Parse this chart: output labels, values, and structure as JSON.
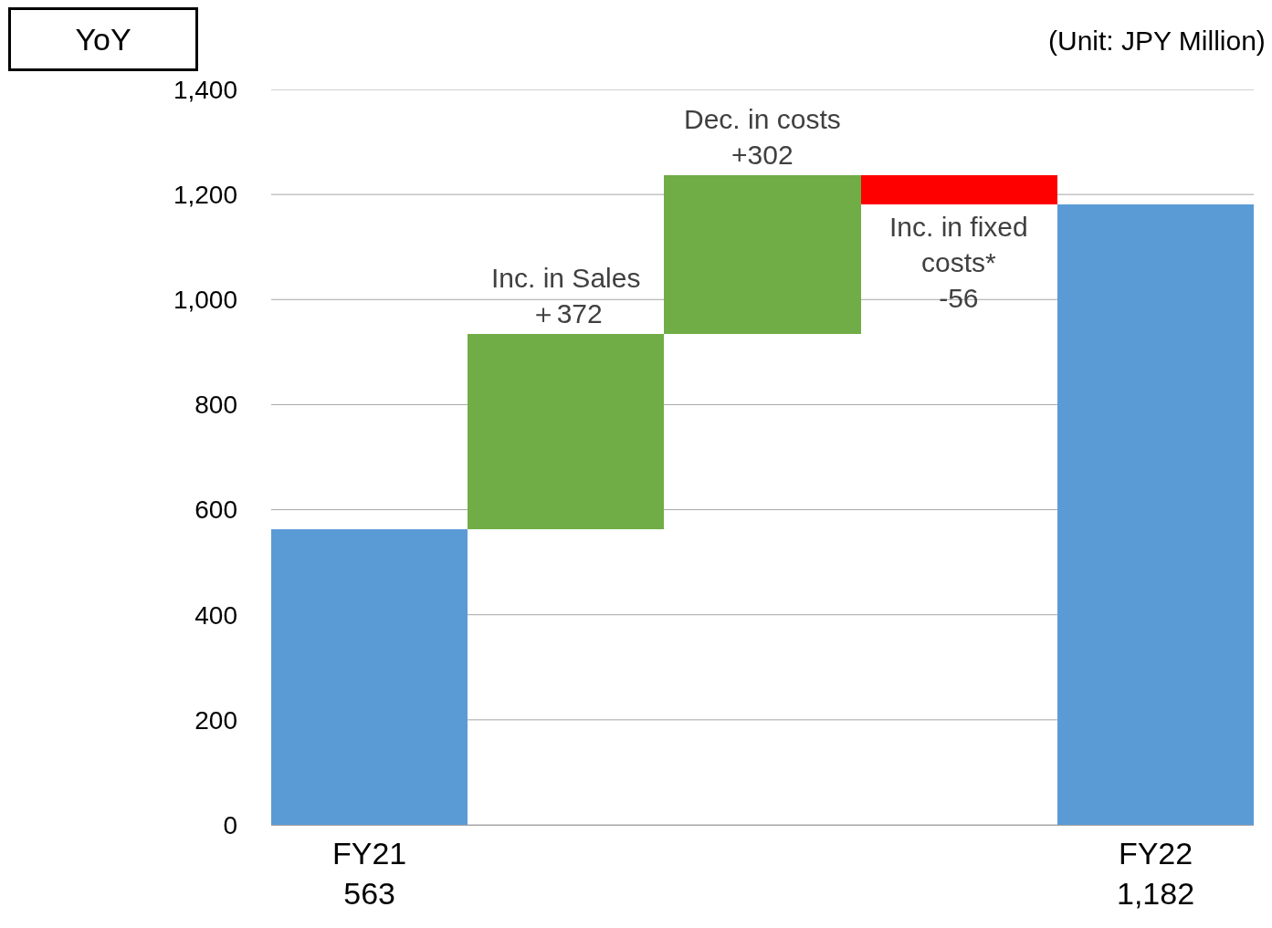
{
  "chart_data": {
    "type": "bar",
    "title": "YoY",
    "annotations": [
      "(Unit: JPY Million)"
    ],
    "categories": [
      "FY21",
      "Inc. in Sales",
      "Dec. in costs",
      "Inc. in fixed costs*",
      "FY22"
    ],
    "values": [
      563,
      372,
      302,
      -56,
      1182
    ],
    "base": [
      0,
      563,
      935,
      1237,
      0
    ],
    "colors": [
      "#5b9bd5",
      "#70ad47",
      "#70ad47",
      "#ff0000",
      "#5b9bd5"
    ],
    "value_labels": [
      "563",
      "＋372",
      "+302",
      "-56",
      "1,182"
    ],
    "ylim": [
      0,
      1400
    ],
    "yticks": [
      0,
      200,
      400,
      600,
      800,
      {
        "value": 1000,
        "label": "1,000"
      },
      {
        "value": 1200,
        "label": "1,200"
      },
      {
        "value": 1400,
        "label": "1,400"
      }
    ],
    "grid": "y"
  }
}
